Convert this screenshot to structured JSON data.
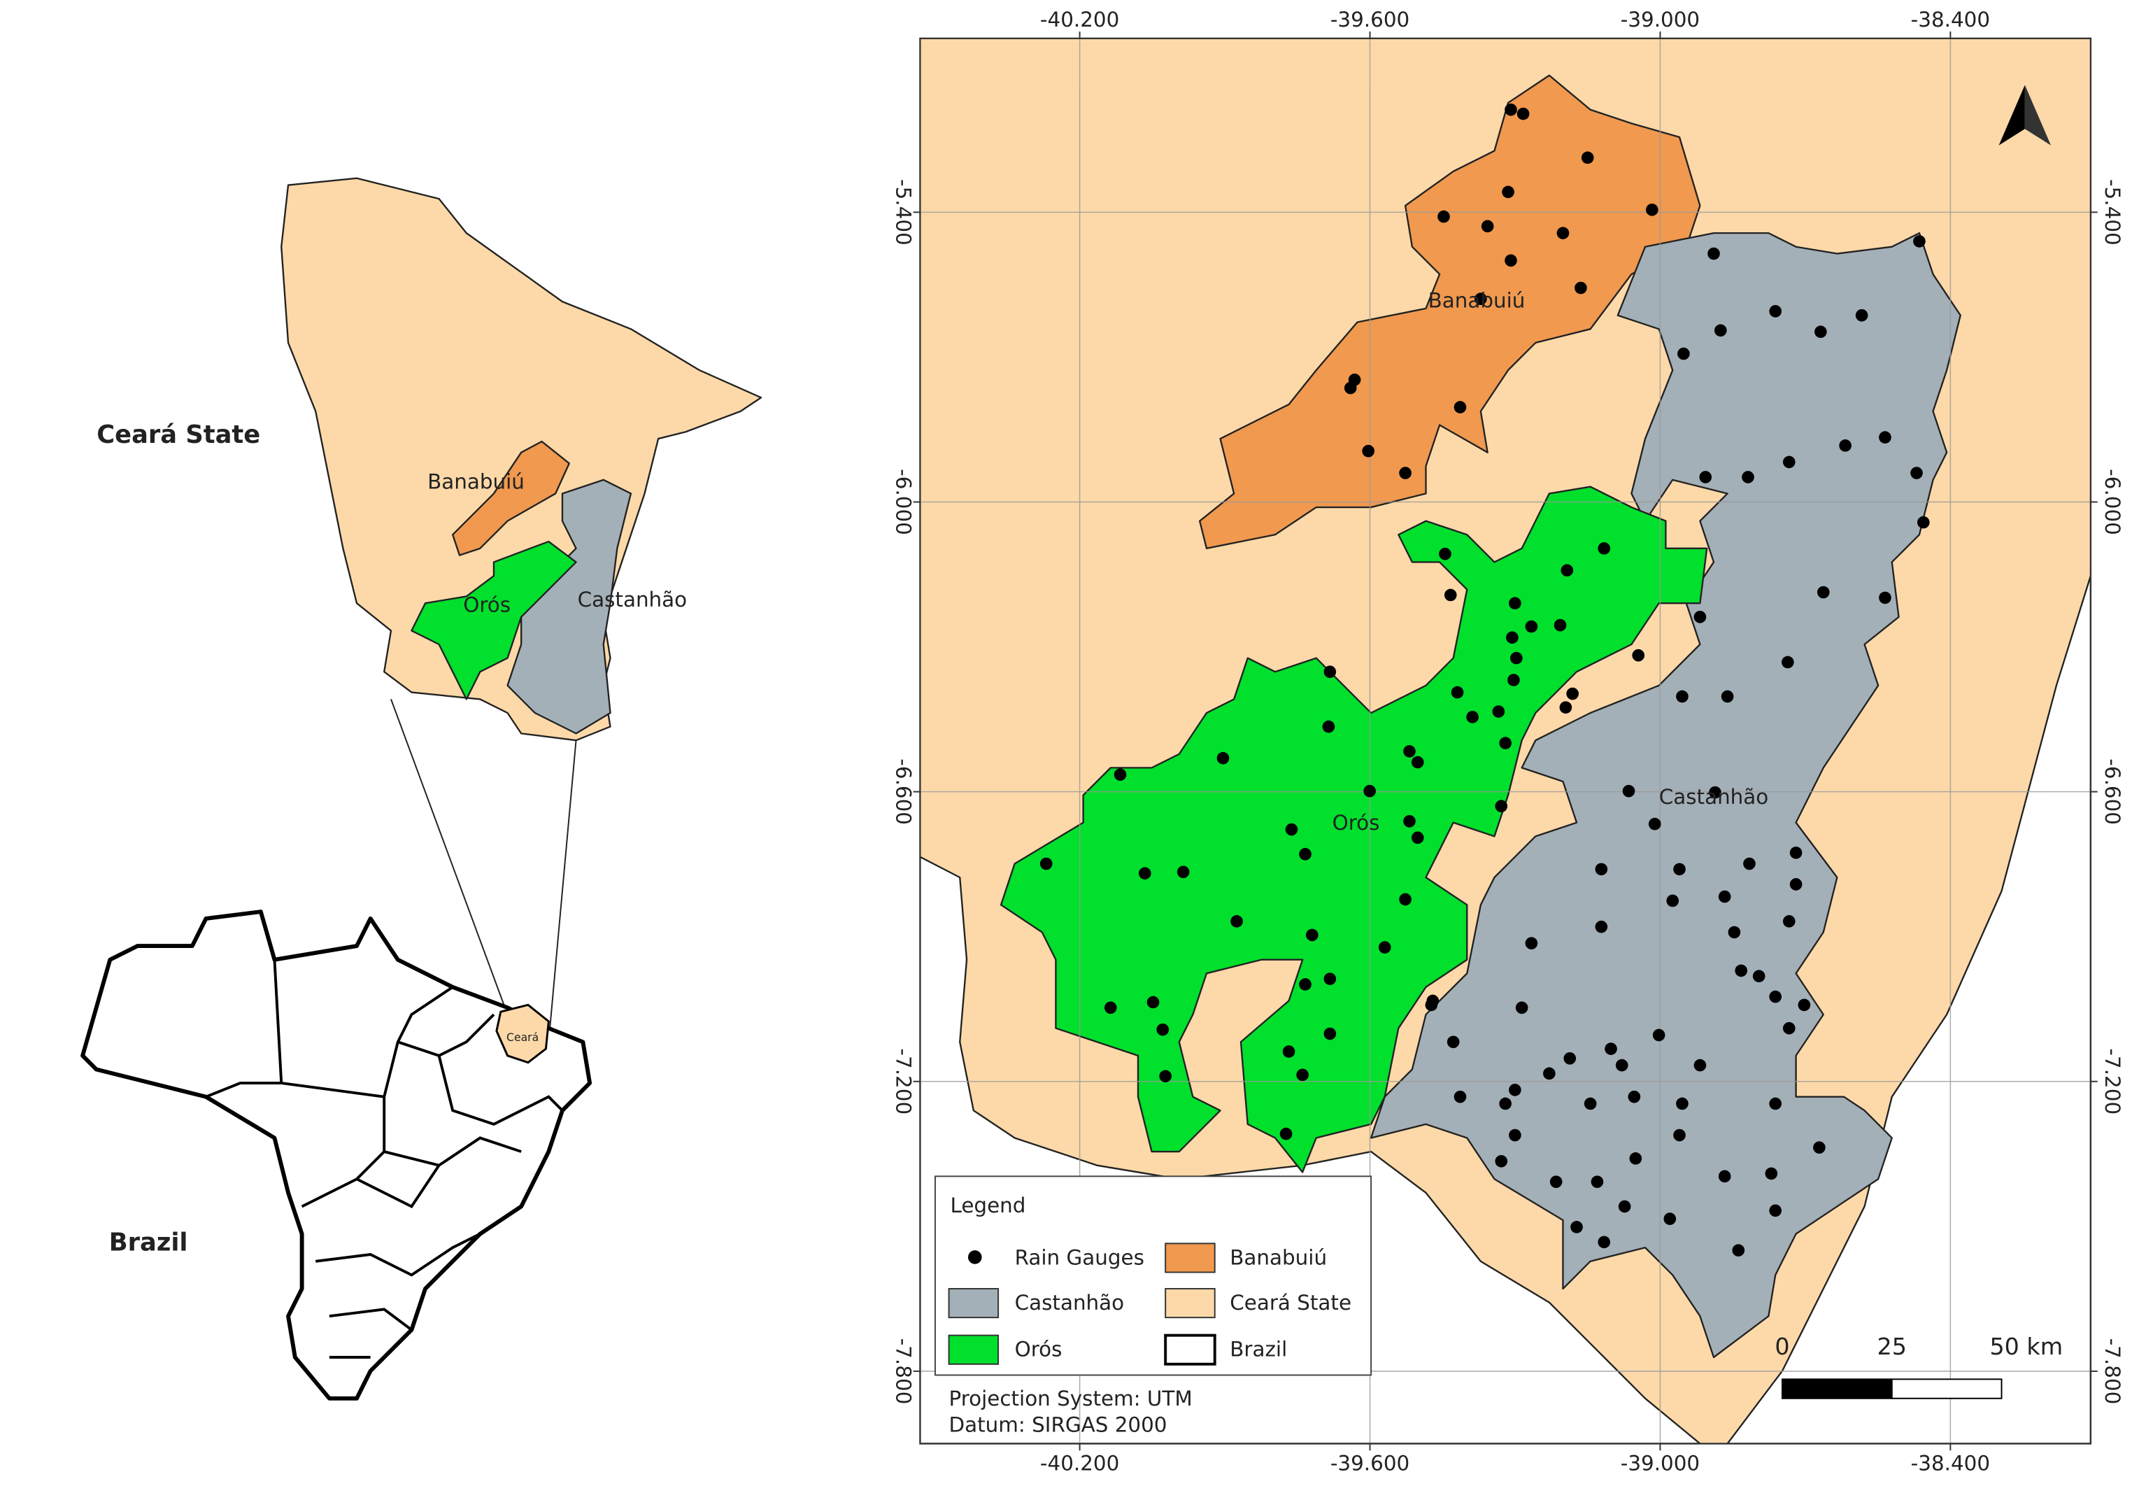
{
  "inset": {
    "state_label": "Ceará State",
    "country_label": "Brazil",
    "state_small_label": "Ceará",
    "basin_labels": [
      "Banabuiú",
      "Orós",
      "Castanhão"
    ]
  },
  "map": {
    "xlim": [
      -40.53,
      -38.11
    ],
    "ylim": [
      -7.95,
      -5.04
    ],
    "xticks": [
      {
        "value": -40.2,
        "label": "-40.200"
      },
      {
        "value": -39.6,
        "label": "-39.600"
      },
      {
        "value": -39.0,
        "label": "-39.000"
      },
      {
        "value": -38.4,
        "label": "-38.400"
      }
    ],
    "yticks": [
      {
        "value": -5.4,
        "label": "-5.400"
      },
      {
        "value": -6.0,
        "label": "-6.000"
      },
      {
        "value": -6.6,
        "label": "-6.600"
      },
      {
        "value": -7.2,
        "label": "-7.200"
      },
      {
        "value": -7.8,
        "label": "-7.800"
      }
    ],
    "grid": true,
    "basin_labels": [
      "Banabuiú",
      "Castanhão",
      "Orós"
    ],
    "legend": {
      "title": "Legend",
      "items": [
        "Rain Gauges",
        "Banabuiú",
        "Castanhão",
        "Ceará State",
        "Orós",
        "Brazil"
      ]
    },
    "scale_bar": [
      "0",
      "25",
      "50 km"
    ],
    "notes": [
      "Projection System: UTM",
      "Datum: SIRGAS 2000"
    ]
  }
}
